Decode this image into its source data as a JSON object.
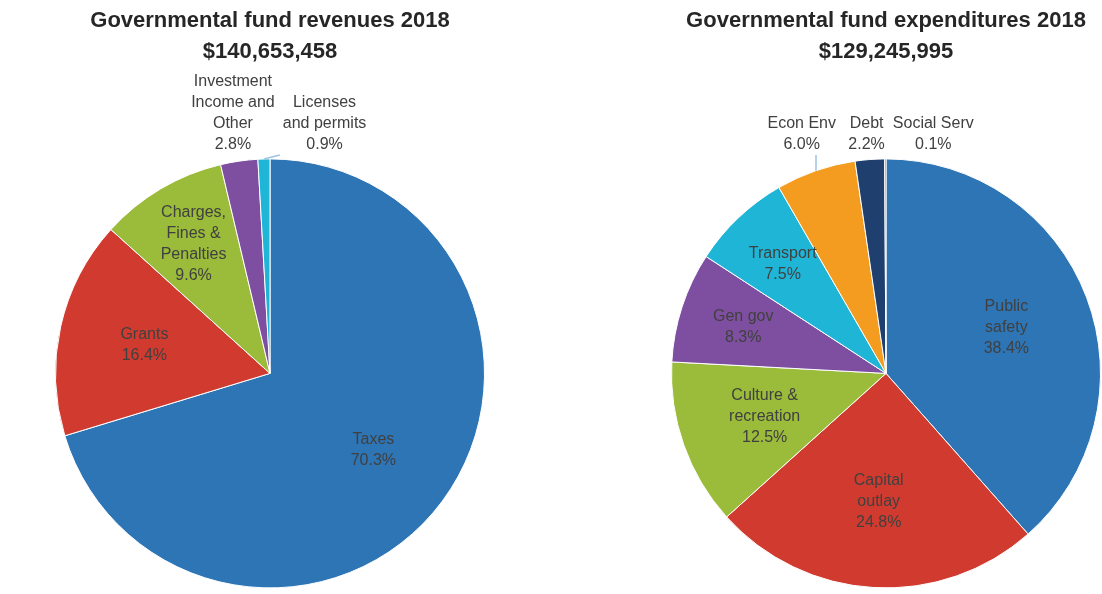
{
  "chart_data": [
    {
      "type": "pie",
      "title": "Governmental fund revenues 2018",
      "subtitle": "$140,653,458",
      "categories": [
        "Taxes",
        "Grants",
        "Charges, Fines & Penalties",
        "Investment Income and Other",
        "Licenses and permits"
      ],
      "values": [
        70.3,
        16.4,
        9.6,
        2.8,
        0.9
      ],
      "value_labels": [
        "70.3%",
        "16.4%",
        "9.6%",
        "2.8%",
        "0.9%"
      ],
      "colors": [
        "#2e75b6",
        "#d13b2f",
        "#9bbb3b",
        "#7e4fa0",
        "#1fb5d6"
      ]
    },
    {
      "type": "pie",
      "title": "Governmental fund expenditures 2018",
      "subtitle": "$129,245,995",
      "categories": [
        "Public safety",
        "Capital outlay",
        "Culture & recreation",
        "Gen gov",
        "Transport",
        "Econ Env",
        "Debt",
        "Social Serv"
      ],
      "values": [
        38.4,
        24.8,
        12.5,
        8.3,
        7.5,
        6.0,
        2.2,
        0.1
      ],
      "value_labels": [
        "38.4%",
        "24.8%",
        "12.5%",
        "8.3%",
        "7.5%",
        "6.0%",
        "2.2%",
        "0.1%"
      ],
      "colors": [
        "#2e75b6",
        "#d13b2f",
        "#9bbb3b",
        "#7e4fa0",
        "#1fb5d6",
        "#f39c1f",
        "#1f3f6e",
        "#c0392b"
      ]
    }
  ]
}
